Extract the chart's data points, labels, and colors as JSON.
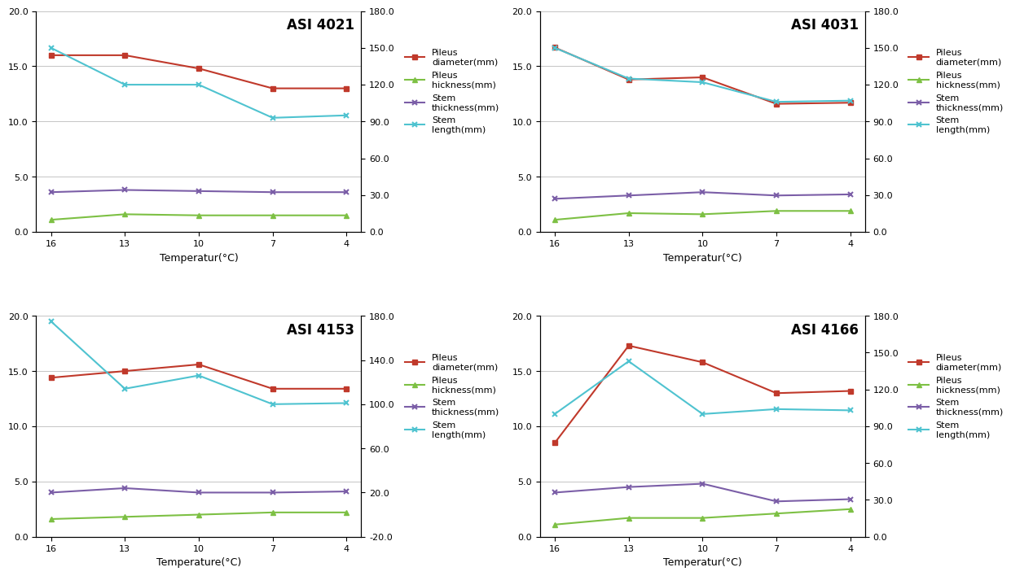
{
  "x_ticks": [
    16,
    13,
    10,
    7,
    4
  ],
  "charts": [
    {
      "title": "ASI 4021",
      "xlabel": "Temperatur(°C)",
      "pileus_diameter": [
        16.0,
        16.0,
        14.8,
        13.0,
        13.0
      ],
      "pileus_thickness": [
        1.1,
        1.6,
        1.5,
        1.5,
        1.5
      ],
      "stem_thickness": [
        3.6,
        3.8,
        3.7,
        3.6,
        3.6
      ],
      "stem_length": [
        150.0,
        120.0,
        120.0,
        93.0,
        95.0
      ],
      "left_ylim": [
        0.0,
        20.0
      ],
      "left_yticks": [
        0.0,
        5.0,
        10.0,
        15.0,
        20.0
      ],
      "right_ylim": [
        0.0,
        180.0
      ],
      "right_yticks": [
        0.0,
        30.0,
        60.0,
        90.0,
        120.0,
        150.0,
        180.0
      ]
    },
    {
      "title": "ASI 4031",
      "xlabel": "Temperatur(°C)",
      "pileus_diameter": [
        16.7,
        13.8,
        14.0,
        11.6,
        11.7
      ],
      "pileus_thickness": [
        1.1,
        1.7,
        1.6,
        1.9,
        1.9
      ],
      "stem_thickness": [
        3.0,
        3.3,
        3.6,
        3.3,
        3.4
      ],
      "stem_length": [
        150.0,
        125.0,
        122.0,
        106.0,
        107.0
      ],
      "left_ylim": [
        0.0,
        20.0
      ],
      "left_yticks": [
        0.0,
        5.0,
        10.0,
        15.0,
        20.0
      ],
      "right_ylim": [
        0.0,
        180.0
      ],
      "right_yticks": [
        0.0,
        30.0,
        60.0,
        90.0,
        120.0,
        150.0,
        180.0
      ]
    },
    {
      "title": "ASI 4153",
      "xlabel": "Temperature(°C)",
      "pileus_diameter": [
        14.4,
        15.0,
        15.6,
        13.4,
        13.4
      ],
      "pileus_thickness": [
        1.6,
        1.8,
        2.0,
        2.2,
        2.2
      ],
      "stem_thickness": [
        4.0,
        4.4,
        4.0,
        4.0,
        4.1
      ],
      "stem_length": [
        175.0,
        114.0,
        126.0,
        100.0,
        101.0
      ],
      "left_ylim": [
        0.0,
        20.0
      ],
      "left_yticks": [
        0.0,
        5.0,
        10.0,
        15.0,
        20.0
      ],
      "right_ylim": [
        -20.0,
        180.0
      ],
      "right_yticks": [
        -20.0,
        20.0,
        60.0,
        100.0,
        140.0,
        180.0
      ]
    },
    {
      "title": "ASI 4166",
      "xlabel": "Temperatur(°C)",
      "pileus_diameter": [
        8.5,
        17.3,
        15.8,
        13.0,
        13.2
      ],
      "pileus_thickness": [
        1.1,
        1.7,
        1.7,
        2.1,
        2.5
      ],
      "stem_thickness": [
        4.0,
        4.5,
        4.8,
        3.2,
        3.4
      ],
      "stem_length": [
        100.0,
        143.0,
        100.0,
        104.0,
        103.0
      ],
      "left_ylim": [
        0.0,
        20.0
      ],
      "left_yticks": [
        0.0,
        5.0,
        10.0,
        15.0,
        20.0
      ],
      "right_ylim": [
        0.0,
        180.0
      ],
      "right_yticks": [
        0.0,
        30.0,
        60.0,
        90.0,
        120.0,
        150.0,
        180.0
      ]
    }
  ],
  "colors": {
    "pileus_diameter": "#C0392B",
    "pileus_thickness": "#7DC044",
    "stem_thickness": "#7B5EA7",
    "stem_length": "#4FC3D0"
  },
  "legend_labels": [
    "Pileus\ndiameter(mm)",
    "Pileus\nhickness(mm)",
    "Stem\nthickness(mm)",
    "Stem\nlength(mm)"
  ],
  "bg_color": "#FFFFFF",
  "grid_color": "#BBBBBB",
  "title_fontsize": 12,
  "axis_fontsize": 9,
  "tick_fontsize": 8,
  "legend_fontsize": 8
}
